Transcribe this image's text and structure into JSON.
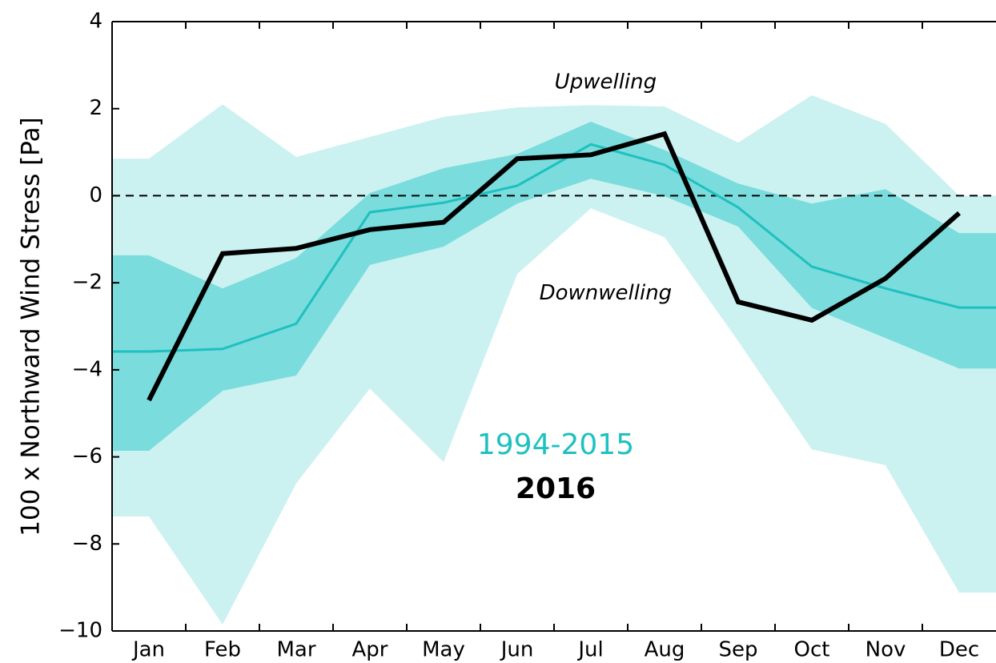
{
  "chart_data": {
    "type": "line",
    "ylabel": "100 x Northward Wind Stress [Pa]",
    "categories": [
      "Jan",
      "Feb",
      "Mar",
      "Apr",
      "May",
      "Jun",
      "Jul",
      "Aug",
      "Sep",
      "Oct",
      "Nov",
      "Dec"
    ],
    "ylim": [
      -10,
      4
    ],
    "yticks": [
      {
        "value": -10,
        "label": "−10"
      },
      {
        "value": -8,
        "label": "−8"
      },
      {
        "value": -6,
        "label": "−6"
      },
      {
        "value": -4,
        "label": "−4"
      },
      {
        "value": -2,
        "label": "−2"
      },
      0,
      2,
      4
    ],
    "zero_line": true,
    "annotations": [
      {
        "text": "Upwelling",
        "x": 6.2,
        "y": 2.6
      },
      {
        "text": "Downwelling",
        "x": 6.2,
        "y": -2.25
      }
    ],
    "series": [
      {
        "name": "1994-2015",
        "color": "#1ec0c0",
        "width": 3,
        "values": [
          -3.58,
          -3.52,
          -2.94,
          -0.38,
          -0.16,
          0.23,
          1.18,
          0.71,
          -0.27,
          -1.63,
          -2.13,
          -2.57
        ],
        "bands": [
          {
            "color": "#ccf1f1",
            "upper": [
              0.85,
              2.1,
              0.89,
              1.35,
              1.81,
              2.03,
              2.08,
              2.05,
              1.22,
              2.31,
              1.65,
              0.0
            ],
            "lower": [
              -7.37,
              -9.85,
              -6.61,
              -4.43,
              -6.12,
              -1.8,
              -0.29,
              -0.95,
              -3.34,
              -5.83,
              -6.19,
              -9.12
            ]
          },
          {
            "color": "#7adcdc",
            "upper": [
              -1.37,
              -2.13,
              -1.43,
              0.06,
              0.63,
              0.96,
              1.7,
              1.05,
              0.28,
              -0.18,
              0.15,
              -0.86
            ],
            "lower": [
              -5.86,
              -4.48,
              -4.13,
              -1.59,
              -1.17,
              -0.18,
              0.39,
              -0.01,
              -0.71,
              -2.58,
              -3.27,
              -3.97
            ]
          }
        ]
      },
      {
        "name": "2016",
        "color": "#000000",
        "width": 6,
        "values": [
          -4.7,
          -1.33,
          -1.21,
          -0.78,
          -0.61,
          0.85,
          0.94,
          1.42,
          -2.44,
          -2.86,
          -1.9,
          -0.4
        ]
      }
    ]
  }
}
